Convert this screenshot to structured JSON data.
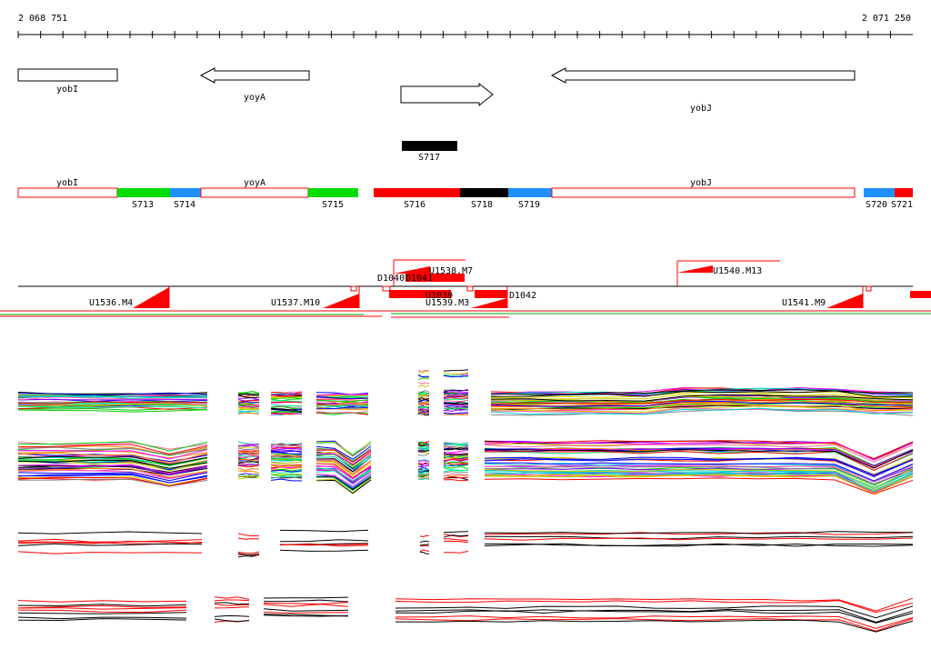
{
  "coords": {
    "start": "2 068 751",
    "end": "2 071 250"
  },
  "colors": {
    "red": "#ff0000",
    "green": "#00dd00",
    "blue": "#1e90ff",
    "black": "#000000",
    "gene_outline": "#000000",
    "segment_outline": "#ff0000"
  },
  "genes": [
    {
      "name": "yobI",
      "label": "yobI",
      "strand": "none"
    },
    {
      "name": "yoyA",
      "label": "yoyA",
      "strand": "reverse"
    },
    {
      "name": "yobJ_fwd",
      "label": "",
      "strand": "forward"
    },
    {
      "name": "yobJ",
      "label": "yobJ",
      "strand": "reverse"
    }
  ],
  "s717": {
    "label": "S717"
  },
  "segments": {
    "labels_above": [
      "yobI",
      "yoyA",
      "yobJ"
    ],
    "labels_below": [
      "S713",
      "S714",
      "S715",
      "S716",
      "S718",
      "S719",
      "S720",
      "S721"
    ]
  },
  "features": {
    "labels": [
      "U1536.M4",
      "U1537.M10",
      "D1040",
      "D1041",
      "U1538.M7",
      "U1039",
      "U1539.M3",
      "D1042",
      "U1540.M13",
      "U1541.M9"
    ]
  },
  "expression_panels": {
    "panel_count": 4,
    "description_colors": [
      "multicolor",
      "multicolor",
      "red-black",
      "red-black"
    ]
  }
}
